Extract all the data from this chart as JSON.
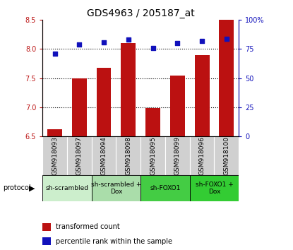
{
  "title": "GDS4963 / 205187_at",
  "samples": [
    "GSM918093",
    "GSM918097",
    "GSM918094",
    "GSM918098",
    "GSM918095",
    "GSM918099",
    "GSM918096",
    "GSM918100"
  ],
  "transformed_counts": [
    6.62,
    7.5,
    7.68,
    8.1,
    6.98,
    7.55,
    7.9,
    8.5
  ],
  "percentile_ranks": [
    71,
    79,
    81,
    83,
    76,
    80,
    82,
    84
  ],
  "ylim_left": [
    6.5,
    8.5
  ],
  "ylim_right": [
    0,
    100
  ],
  "yticks_left": [
    6.5,
    7.0,
    7.5,
    8.0,
    8.5
  ],
  "yticks_right": [
    0,
    25,
    50,
    75,
    100
  ],
  "ytick_labels_right": [
    "0",
    "25",
    "50",
    "75",
    "100%"
  ],
  "bar_color": "#bb1111",
  "dot_color": "#1111bb",
  "base_value": 6.5,
  "bar_width": 0.6,
  "grid_yticks": [
    7.0,
    7.5,
    8.0
  ],
  "proto_groups": [
    {
      "label": "sh-scrambled",
      "indices": [
        0,
        1
      ],
      "color": "#cceecc"
    },
    {
      "label": "sh-scrambled +\nDox",
      "indices": [
        2,
        3
      ],
      "color": "#aaddaa"
    },
    {
      "label": "sh-FOXO1",
      "indices": [
        4,
        5
      ],
      "color": "#44cc44"
    },
    {
      "label": "sh-FOXO1 +\nDox",
      "indices": [
        6,
        7
      ],
      "color": "#33cc33"
    }
  ],
  "legend_red_label": "transformed count",
  "legend_blue_label": "percentile rank within the sample",
  "protocol_label": "protocol",
  "title_fontsize": 10,
  "tick_fontsize": 7,
  "proto_fontsize": 7,
  "legend_fontsize": 7
}
